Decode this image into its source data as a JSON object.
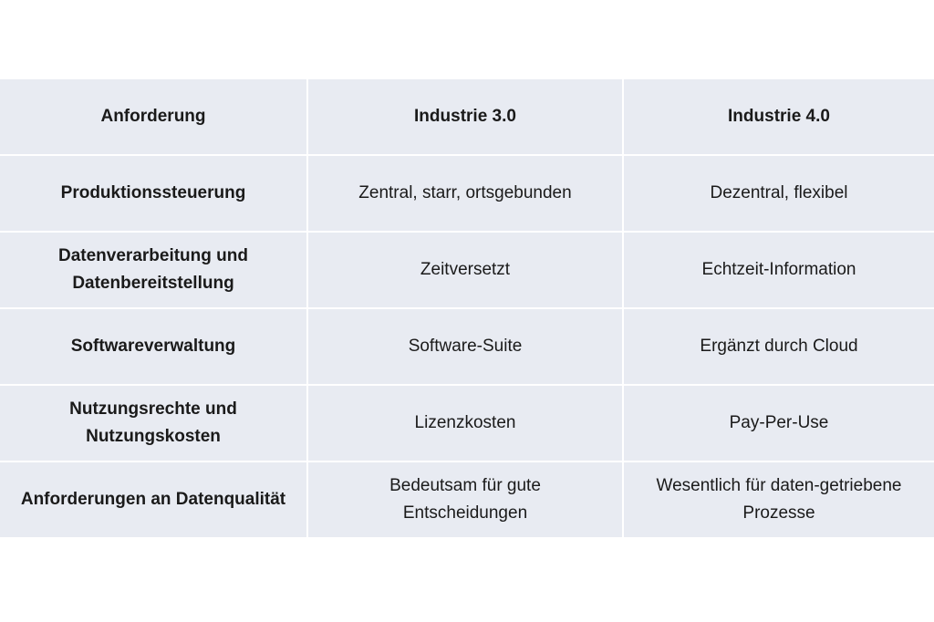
{
  "table": {
    "headers": [
      "Anforderung",
      "Industrie 3.0",
      "Industrie 4.0"
    ],
    "rows": [
      [
        "Produktionssteuerung",
        "Zentral, starr, ortsgebunden",
        "Dezentral, flexibel"
      ],
      [
        "Datenverarbeitung und Datenbereitstellung",
        "Zeitversetzt",
        "Echtzeit-Information"
      ],
      [
        "Softwareverwaltung",
        "Software-Suite",
        "Ergänzt durch Cloud"
      ],
      [
        "Nutzungsrechte und Nutzungskosten",
        "Lizenzkosten",
        "Pay-Per-Use"
      ],
      [
        "Anforderungen an Datenqualität",
        "Bedeutsam für gute Entscheidungen",
        "Wesentlich für daten-getriebene Prozesse"
      ]
    ]
  },
  "colors": {
    "cell_bg": "#e8ebf2",
    "text": "#1a1a1a"
  }
}
